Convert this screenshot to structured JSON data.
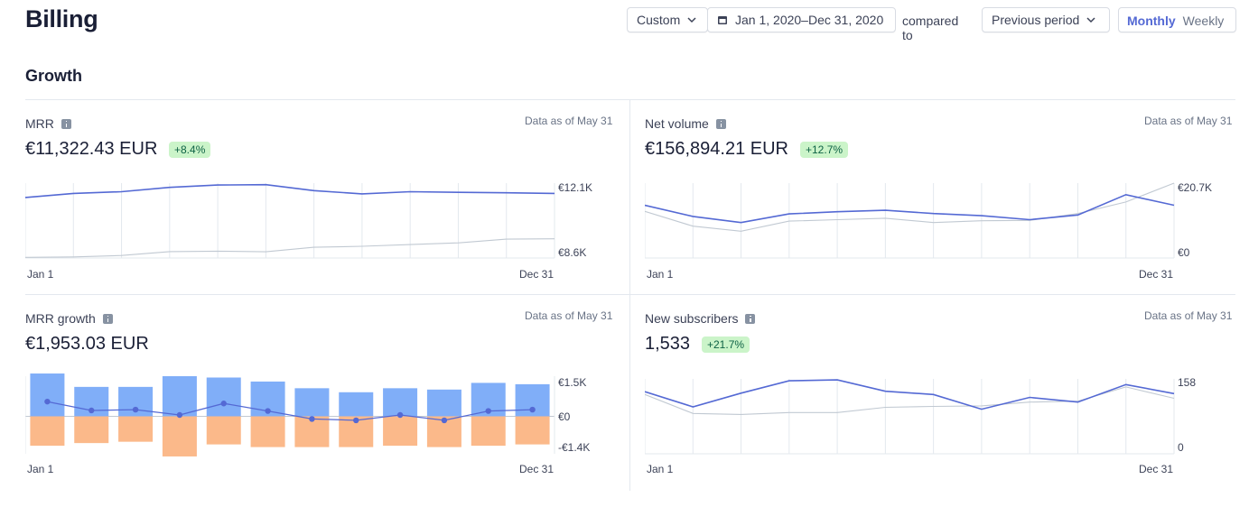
{
  "page_title": "Billing",
  "toolbar": {
    "range_select": "Custom",
    "date_range": "Jan 1, 2020–Dec 31, 2020",
    "compared_to_label": "compared to",
    "compare_select": "Previous period",
    "interval_options": [
      "Monthly",
      "Weekly"
    ],
    "interval_selected": "Monthly"
  },
  "section_title": "Growth",
  "colors": {
    "current": "#5469d4",
    "previous": "#c1c9d2",
    "positive_bar": "#80aef8",
    "negative_bar": "#fbb98a",
    "badge_bg": "#cbf4c9",
    "badge_text": "#0e6245"
  },
  "panels": {
    "mrr": {
      "title": "MRR",
      "as_of": "Data as of May 31",
      "value": "€11,322.43 EUR",
      "change": "+8.4%",
      "y_top_label": "€12.1K",
      "y_bottom_label": "€8.6K",
      "x_start": "Jan 1",
      "x_end": "Dec 31"
    },
    "net_volume": {
      "title": "Net volume",
      "as_of": "Data as of May 31",
      "value": "€156,894.21 EUR",
      "change": "+12.7%",
      "y_top_label": "€20.7K",
      "y_bottom_label": "€0",
      "x_start": "Jan 1",
      "x_end": "Dec 31"
    },
    "mrr_growth": {
      "title": "MRR growth",
      "as_of": "Data as of May 31",
      "value": "€1,953.03 EUR",
      "y_top_label": "€1.5K",
      "y_mid_label": "€0",
      "y_bottom_label": "-€1.4K",
      "x_start": "Jan 1",
      "x_end": "Dec 31"
    },
    "new_subscribers": {
      "title": "New subscribers",
      "as_of": "Data as of May 31",
      "value": "1,533",
      "change": "+21.7%",
      "y_top_label": "158",
      "y_bottom_label": "0",
      "x_start": "Jan 1",
      "x_end": "Dec 31"
    }
  },
  "chart_data": [
    {
      "id": "mrr",
      "type": "line",
      "ylim": [
        8600,
        12100
      ],
      "series": [
        {
          "values": [
            11430,
            11620,
            11700,
            11900,
            12010,
            12030,
            11750,
            11600,
            11700,
            11670,
            11650,
            11620
          ]
        },
        {
          "values": [
            8630,
            8650,
            8720,
            8900,
            8920,
            8890,
            9100,
            9150,
            9230,
            9310,
            9480,
            9500
          ]
        }
      ]
    },
    {
      "id": "net_volume",
      "type": "line",
      "ylim": [
        0,
        20700
      ],
      "series": [
        {
          "values": [
            14600,
            11500,
            9800,
            12200,
            12800,
            13200,
            12300,
            11700,
            10600,
            11900,
            17500,
            14600
          ]
        },
        {
          "values": [
            12900,
            8800,
            7400,
            10200,
            10600,
            11000,
            9800,
            10300,
            10400,
            12300,
            15500,
            20700
          ]
        }
      ]
    },
    {
      "id": "mrr_growth",
      "type": "bar",
      "ylim": [
        -1400,
        1500
      ],
      "new_values": [
        1600,
        1100,
        1100,
        1500,
        1450,
        1300,
        1050,
        900,
        1050,
        1000,
        1250,
        1200
      ],
      "churn_values": [
        -1100,
        -1000,
        -950,
        -1500,
        -1050,
        -1150,
        -1150,
        -1150,
        -1100,
        -1150,
        -1100,
        -1050
      ],
      "net_values": [
        550,
        220,
        250,
        50,
        480,
        200,
        -100,
        -150,
        50,
        -150,
        200,
        250
      ]
    },
    {
      "id": "new_subscribers",
      "type": "line",
      "ylim": [
        0,
        158
      ],
      "series": [
        {
          "values": [
            131,
            99,
            128,
            154,
            156,
            132,
            125,
            94,
            119,
            109,
            146,
            127
          ]
        },
        {
          "values": [
            125,
            85,
            83,
            87,
            87,
            98,
            100,
            101,
            109,
            111,
            141,
            117
          ]
        }
      ]
    }
  ]
}
